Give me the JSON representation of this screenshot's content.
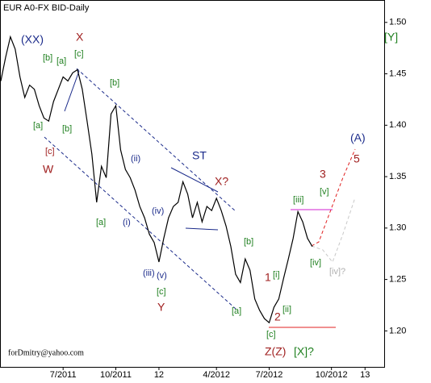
{
  "chart_data": {
    "type": "line",
    "title": "EUR A0-FX BID-Daily",
    "note": "forDmitry@yahoo.com",
    "categories": [
      null,
      null,
      null,
      null,
      null,
      null,
      null,
      null,
      null,
      null,
      null,
      null,
      null,
      "7/2011",
      null,
      null,
      null,
      null,
      null,
      null,
      null,
      null,
      null,
      null,
      "10/2011",
      null,
      null,
      null,
      null,
      null,
      null,
      null,
      null,
      "12",
      null,
      null,
      null,
      null,
      null,
      null,
      null,
      null,
      null,
      null,
      null,
      "4/2012",
      null,
      null,
      null,
      null,
      null,
      null,
      null,
      null,
      null,
      null,
      "7/2012",
      null,
      null,
      null,
      null,
      null,
      null,
      null,
      null,
      null,
      null,
      null,
      null,
      "10/2012",
      null,
      null,
      null,
      null,
      null,
      null,
      "13",
      null,
      null,
      null
    ],
    "series": [
      {
        "name": "EUR",
        "color": "#000000",
        "values": [
          1.443,
          1.466,
          1.486,
          1.474,
          1.447,
          1.427,
          1.439,
          1.435,
          1.419,
          1.407,
          1.404,
          1.423,
          1.435,
          1.447,
          1.443,
          1.451,
          1.454,
          1.435,
          1.404,
          1.372,
          1.325,
          1.36,
          1.349,
          1.411,
          1.419,
          1.376,
          1.357,
          1.349,
          1.337,
          1.321,
          1.31,
          1.294,
          1.286,
          1.267,
          1.29,
          1.31,
          1.321,
          1.325,
          1.345,
          1.333,
          1.31,
          1.325,
          1.306,
          1.321,
          1.317,
          1.329,
          1.317,
          1.302,
          1.282,
          1.255,
          1.247,
          1.27,
          1.259,
          1.231,
          1.22,
          1.212,
          1.208,
          1.223,
          1.231,
          1.251,
          1.27,
          1.29,
          1.316,
          1.306,
          1.29,
          1.282,
          null,
          null,
          null,
          null,
          null,
          null,
          null,
          null,
          null,
          null,
          null,
          null,
          null,
          null
        ]
      }
    ],
    "ylim": [
      1.165,
      1.521
    ],
    "yticks": [
      {
        "value": 1.2,
        "label": "1.20"
      },
      {
        "value": 1.25,
        "label": "1.25"
      },
      {
        "value": 1.3,
        "label": "1.30"
      },
      {
        "value": 1.35,
        "label": "1.35"
      },
      {
        "value": 1.4,
        "label": "1.40"
      },
      {
        "value": 1.45,
        "label": "1.45"
      },
      {
        "value": 1.5,
        "label": "1.50"
      }
    ],
    "annotations": [
      "(XX)",
      "X",
      "[b]",
      "[a]",
      "[c]",
      "[b]",
      "[a]",
      "[b]",
      "[c]",
      "W",
      "(ii)",
      "ST",
      "X?",
      "(iv)",
      "(i)",
      "[a]",
      "(iii)",
      "(v)",
      "[c]",
      "Y",
      "[b]",
      "[a]",
      "1",
      "[i]",
      "2",
      "[ii]",
      "[iii]",
      "[v]",
      "3",
      "[iv]",
      "[iv]?",
      "(A)",
      "5",
      "[Y]",
      "[c]",
      "Z(Z)",
      "[X]?"
    ]
  }
}
